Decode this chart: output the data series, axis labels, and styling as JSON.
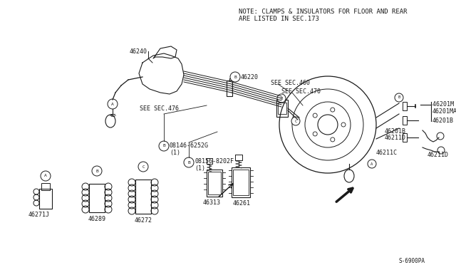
{
  "bg_color": "#ffffff",
  "lc": "#1a1a1a",
  "tc": "#1a1a1a",
  "note_line1": "NOTE: CLAMPS & INSULATORS FOR FLOOR AND REAR",
  "note_line2": "ARE LISTED IN SEC.173",
  "diagram_code": "S-6900PA",
  "figsize": [
    6.4,
    3.72
  ],
  "dpi": 100
}
